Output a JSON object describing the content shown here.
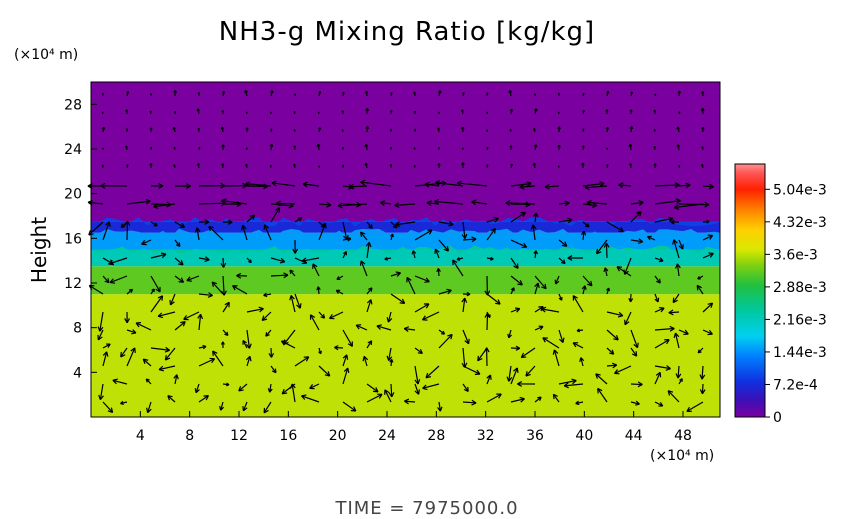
{
  "chart_data": {
    "type": "heatmap",
    "title": "NH3-g Mixing Ratio [kg/kg]",
    "ylabel": "Height",
    "y_unit_label": "(×10⁴ m)",
    "x_unit_label": "(×10⁴ m)",
    "x_ticks": [
      "4",
      "8",
      "12",
      "16",
      "20",
      "24",
      "28",
      "32",
      "36",
      "40",
      "44",
      "48"
    ],
    "y_ticks": [
      "4",
      "8",
      "12",
      "16",
      "20",
      "24",
      "28"
    ],
    "xlim": [
      0,
      51
    ],
    "ylim": [
      0,
      30
    ],
    "colorbar": {
      "ticks": [
        "5.04e-3",
        "4.32e-3",
        "3.6e-3",
        "2.88e-3",
        "2.16e-3",
        "1.44e-3",
        "7.2e-4",
        "0"
      ],
      "tick_values": [
        0.00504,
        0.00432,
        0.0036,
        0.00288,
        0.00216,
        0.00144,
        0.00072,
        0
      ],
      "range": [
        0,
        0.0056
      ]
    },
    "regions": [
      {
        "y_from": 0,
        "y_to": 11,
        "value": 0.0036
      },
      {
        "y_from": 11,
        "y_to": 13.5,
        "value": 0.0032
      },
      {
        "y_from": 13.5,
        "y_to": 15,
        "value": 0.0022
      },
      {
        "y_from": 15,
        "y_to": 16.5,
        "value": 0.0015
      },
      {
        "y_from": 16.5,
        "y_to": 17.5,
        "value": 0.0007
      },
      {
        "y_from": 17.5,
        "y_to": 30,
        "value": 0
      }
    ],
    "annotation": "TIME  =  7975000.0"
  }
}
